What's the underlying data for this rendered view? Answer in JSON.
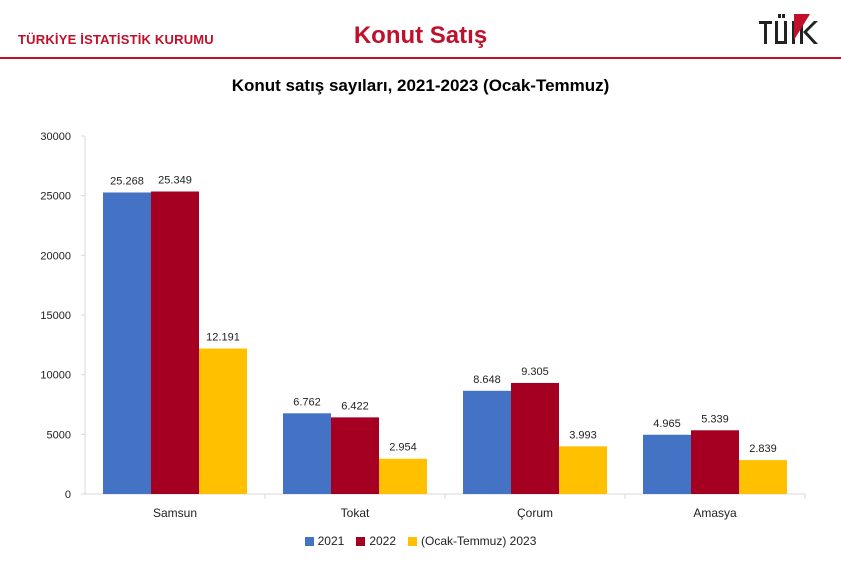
{
  "header": {
    "org_name": "TÜRKİYE İSTATİSTİK KURUMU",
    "page_title": "Konut Satış",
    "logo_text": "TÜİK"
  },
  "chart_data": {
    "type": "bar",
    "title": "Konut satış sayıları, 2021-2023 (Ocak-Temmuz)",
    "xlabel": "",
    "ylabel": "",
    "categories": [
      "Samsun",
      "Tokat",
      "Çorum",
      "Amasya"
    ],
    "series": [
      {
        "name": "2021",
        "color": "#4472c4",
        "values": [
          25268,
          6762,
          8648,
          4965
        ],
        "labels": [
          "25.268",
          "6.762",
          "8.648",
          "4.965"
        ]
      },
      {
        "name": "2022",
        "color": "#a50021",
        "values": [
          25349,
          6422,
          9305,
          5339
        ],
        "labels": [
          "25.349",
          "6.422",
          "9.305",
          "5.339"
        ]
      },
      {
        "name": "(Ocak-Temmuz) 2023",
        "color": "#ffc000",
        "values": [
          12191,
          2954,
          3993,
          2839
        ],
        "labels": [
          "12.191",
          "2.954",
          "3.993",
          "2.839"
        ]
      }
    ],
    "ylim": [
      0,
      30000
    ],
    "yticks": [
      "0",
      "5000",
      "10000",
      "15000",
      "20000",
      "25000",
      "30000"
    ],
    "grid": false,
    "legend_position": "bottom"
  },
  "colors": {
    "brand": "#c0102a",
    "axis": "#d9d9d9"
  }
}
